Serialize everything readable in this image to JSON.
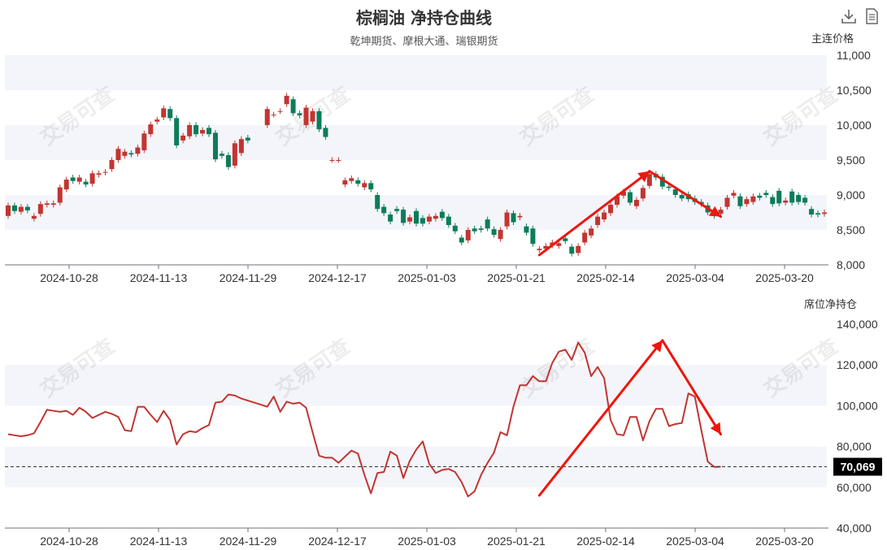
{
  "title": "棕榈油 净持仓曲线",
  "subtitle": "乾坤期货、摩根大通、瑞银期货",
  "watermark": "交易可查",
  "toolbar": {
    "download_icon": "download-icon",
    "data_view_icon": "document-icon"
  },
  "colors": {
    "up": "#c23531",
    "down": "#0c7c59",
    "line": "#c23531",
    "arrow": "#f0150c",
    "band": "#f3f5fa"
  },
  "chart_data": [
    {
      "type": "candlestick",
      "ylabel": "主连价格",
      "ylim": [
        8000,
        11000
      ],
      "yticks": [
        "8,000",
        "8,500",
        "9,000",
        "9,500",
        "10,000",
        "10,500",
        "11,000"
      ],
      "xticks": [
        "2024-10-28",
        "2024-11-13",
        "2024-11-29",
        "2024-12-17",
        "2025-01-03",
        "2025-01-21",
        "2025-02-14",
        "2025-03-04",
        "2025-03-20"
      ],
      "n_days": 100,
      "missing_days": [
        38,
        39
      ],
      "open_close": [
        [
          8700,
          8850
        ],
        [
          8850,
          8770
        ],
        [
          8760,
          8830
        ],
        [
          8830,
          8780
        ],
        [
          8660,
          8700
        ],
        [
          8730,
          8870
        ],
        [
          8860,
          8880
        ],
        [
          8860,
          8880
        ],
        [
          8890,
          9110
        ],
        [
          9080,
          9220
        ],
        [
          9250,
          9200
        ],
        [
          9190,
          9250
        ],
        [
          9190,
          9150
        ],
        [
          9160,
          9310
        ],
        [
          9290,
          9310
        ],
        [
          9320,
          9330
        ],
        [
          9370,
          9500
        ],
        [
          9500,
          9660
        ],
        [
          9560,
          9620
        ],
        [
          9600,
          9580
        ],
        [
          9590,
          9680
        ],
        [
          9640,
          9880
        ],
        [
          9870,
          10010
        ],
        [
          10050,
          10080
        ],
        [
          10110,
          10240
        ],
        [
          10230,
          10100
        ],
        [
          10100,
          9710
        ],
        [
          9780,
          9850
        ],
        [
          9840,
          10000
        ],
        [
          10000,
          9870
        ],
        [
          9880,
          9930
        ],
        [
          9960,
          9870
        ],
        [
          9890,
          9510
        ],
        [
          9590,
          9560
        ],
        [
          9570,
          9400
        ],
        [
          9420,
          9740
        ],
        [
          9600,
          9800
        ],
        [
          9820,
          9780
        ],
        [
          9860,
          9710
        ],
        [
          9800,
          9950
        ],
        [
          10000,
          10230
        ],
        [
          10150,
          10150
        ],
        [
          10200,
          10200
        ],
        [
          10300,
          10420
        ],
        [
          10370,
          10170
        ],
        [
          10170,
          10140
        ],
        [
          10000,
          10250
        ],
        [
          10050,
          10200
        ],
        [
          10200,
          9940
        ],
        [
          9960,
          9830
        ],
        [
          9500,
          9500
        ],
        [
          9500,
          9500
        ],
        [
          9150,
          9210
        ],
        [
          9200,
          9240
        ],
        [
          9210,
          9160
        ],
        [
          9110,
          9170
        ],
        [
          9170,
          9080
        ],
        [
          9000,
          8800
        ],
        [
          8830,
          8740
        ],
        [
          8720,
          8620
        ],
        [
          8800,
          8770
        ],
        [
          8790,
          8600
        ],
        [
          8620,
          8680
        ],
        [
          8770,
          8590
        ],
        [
          8670,
          8590
        ],
        [
          8620,
          8690
        ],
        [
          8660,
          8700
        ],
        [
          8760,
          8670
        ],
        [
          8690,
          8570
        ],
        [
          8560,
          8480
        ],
        [
          8390,
          8320
        ],
        [
          8350,
          8500
        ],
        [
          8520,
          8480
        ],
        [
          8520,
          8500
        ],
        [
          8650,
          8520
        ],
        [
          8510,
          8430
        ],
        [
          8370,
          8500
        ],
        [
          8550,
          8750
        ],
        [
          8740,
          8610
        ],
        [
          8680,
          8700
        ],
        [
          8550,
          8460
        ],
        [
          8520,
          8300
        ],
        [
          8210,
          8230
        ],
        [
          8230,
          8270
        ],
        [
          8280,
          8320
        ],
        [
          8270,
          8310
        ],
        [
          8380,
          8340
        ],
        [
          8260,
          8160
        ],
        [
          8170,
          8270
        ],
        [
          8320,
          8460
        ],
        [
          8420,
          8520
        ],
        [
          8570,
          8690
        ],
        [
          8650,
          8750
        ],
        [
          8740,
          8860
        ],
        [
          8860,
          8980
        ],
        [
          8990,
          9050
        ],
        [
          9040,
          8890
        ],
        [
          8840,
          8930
        ],
        [
          8950,
          9100
        ],
        [
          9130,
          9300
        ]
      ],
      "open_close_tail": [
        [
          9300,
          9250
        ],
        [
          9260,
          9120
        ],
        [
          9120,
          9100
        ],
        [
          9080,
          9000
        ],
        [
          9000,
          8950
        ],
        [
          9010,
          8940
        ],
        [
          8950,
          8900
        ],
        [
          8900,
          8870
        ],
        [
          8850,
          8750
        ],
        [
          8720,
          8700
        ],
        [
          8730,
          8790
        ],
        [
          8830,
          8960
        ],
        [
          8990,
          9030
        ],
        [
          8980,
          8840
        ],
        [
          8870,
          8940
        ],
        [
          8900,
          8980
        ],
        [
          8990,
          8960
        ],
        [
          9030,
          9000
        ],
        [
          8970,
          8870
        ],
        [
          9060,
          8880
        ],
        [
          8890,
          8920
        ],
        [
          9050,
          8890
        ],
        [
          9000,
          8900
        ],
        [
          8960,
          8890
        ],
        [
          8800,
          8720
        ],
        [
          8740,
          8720
        ],
        [
          8730,
          8750
        ]
      ]
    },
    {
      "type": "line",
      "ylabel": "席位净持仓",
      "ylim": [
        40000,
        140000
      ],
      "yticks": [
        "40,000",
        "60,000",
        "80,000",
        "100,000",
        "120,000",
        "140,000"
      ],
      "xticks": [
        "2024-10-28",
        "2024-11-13",
        "2024-11-29",
        "2024-12-17",
        "2025-01-03",
        "2025-01-21",
        "2025-02-14",
        "2025-03-04",
        "2025-03-20"
      ],
      "reference_line": 70069,
      "reference_label": "70,069",
      "values": [
        86000,
        85500,
        85000,
        85500,
        86500,
        92000,
        98000,
        97500,
        97000,
        97500,
        95500,
        99000,
        97000,
        94000,
        95500,
        97000,
        96000,
        94500,
        88000,
        87500,
        99500,
        99500,
        95500,
        92000,
        97500,
        93000,
        81000,
        86000,
        87500,
        87000,
        89000,
        90500,
        101500,
        102000,
        105500,
        105000,
        103500,
        102500,
        101500,
        100500,
        99500,
        104500,
        97000,
        102000,
        101000,
        101500,
        99000,
        87000,
        75500,
        74500,
        74500,
        72000,
        75000,
        78000,
        76500,
        66000,
        57000,
        67000,
        67500,
        77500,
        75500,
        64500,
        73000,
        78500,
        82500,
        71500,
        67000,
        68500,
        69000,
        67500,
        62500,
        55500,
        58000,
        66000,
        72000,
        77000,
        87000,
        85500,
        99500,
        110000,
        110000,
        114500,
        112000,
        112000,
        121000,
        126500,
        127500,
        122500,
        131000,
        126000,
        114500,
        119000,
        113500,
        93000,
        86000,
        85500,
        94500,
        94500,
        83000,
        92500,
        98500,
        98500,
        90000,
        91000,
        91500,
        106000,
        104500,
        88000,
        72500,
        70000,
        70069
      ]
    }
  ]
}
